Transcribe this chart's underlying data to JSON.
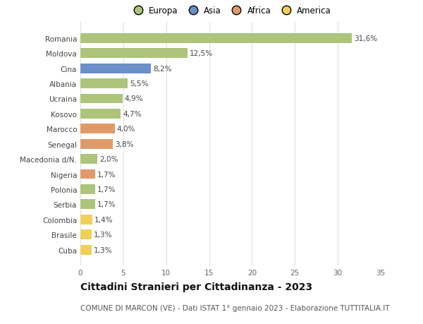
{
  "countries": [
    "Romania",
    "Moldova",
    "Cina",
    "Albania",
    "Ucraina",
    "Kosovo",
    "Marocco",
    "Senegal",
    "Macedonia d/N.",
    "Nigeria",
    "Polonia",
    "Serbia",
    "Colombia",
    "Brasile",
    "Cuba"
  ],
  "values": [
    31.6,
    12.5,
    8.2,
    5.5,
    4.9,
    4.7,
    4.0,
    3.8,
    2.0,
    1.7,
    1.7,
    1.7,
    1.4,
    1.3,
    1.3
  ],
  "labels": [
    "31,6%",
    "12,5%",
    "8,2%",
    "5,5%",
    "4,9%",
    "4,7%",
    "4,0%",
    "3,8%",
    "2,0%",
    "1,7%",
    "1,7%",
    "1,7%",
    "1,4%",
    "1,3%",
    "1,3%"
  ],
  "regions": [
    "Europa",
    "Europa",
    "Asia",
    "Europa",
    "Europa",
    "Europa",
    "Africa",
    "Africa",
    "Europa",
    "Africa",
    "Europa",
    "Europa",
    "America",
    "America",
    "America"
  ],
  "colors": {
    "Europa": "#adc47a",
    "Asia": "#6b8fc7",
    "Africa": "#e09a6a",
    "America": "#f0cf5a"
  },
  "xlim": [
    0,
    35
  ],
  "xticks": [
    0,
    5,
    10,
    15,
    20,
    25,
    30,
    35
  ],
  "title": "Cittadini Stranieri per Cittadinanza - 2023",
  "subtitle": "COMUNE DI MARCON (VE) - Dati ISTAT 1° gennaio 2023 - Elaborazione TUTTITALIA.IT",
  "background_color": "#ffffff",
  "grid_color": "#dddddd",
  "bar_height": 0.65,
  "label_fontsize": 7.5,
  "tick_fontsize": 7.5,
  "title_fontsize": 10,
  "subtitle_fontsize": 7.5,
  "legend_order": [
    "Europa",
    "Asia",
    "Africa",
    "America"
  ]
}
